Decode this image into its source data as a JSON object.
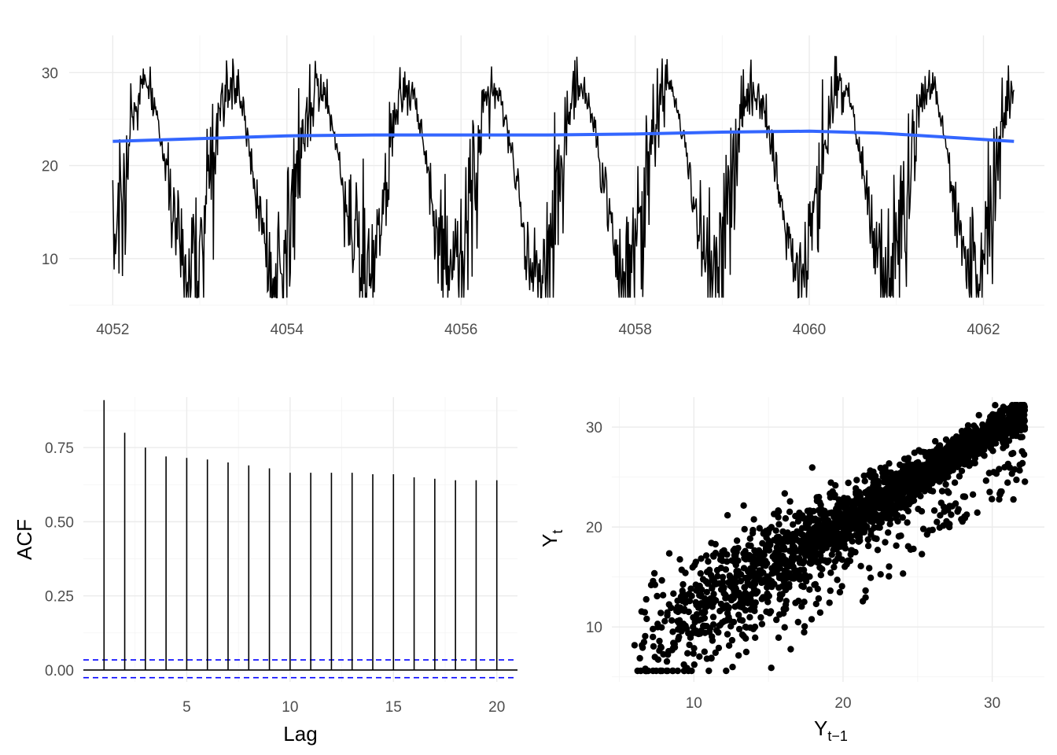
{
  "chart_data": [
    {
      "type": "line",
      "title": "",
      "xlabel": "",
      "ylabel": "",
      "xlim": [
        4051.5,
        4062.7
      ],
      "ylim": [
        5,
        34
      ],
      "x_ticks": [
        "4052",
        "4054",
        "4056",
        "4058",
        "4060",
        "4062"
      ],
      "y_ticks": [
        "10",
        "20",
        "30"
      ],
      "x_tick_values": [
        4052,
        4054,
        4056,
        4058,
        4060,
        4062
      ],
      "y_tick_values": [
        10,
        20,
        30
      ],
      "grid": true,
      "series": [
        {
          "role": "observed",
          "color": "#000000",
          "x_range": [
            4052.0,
            4062.35
          ],
          "cycles_per_unit": 1.0,
          "seasonal_peak_approx": 29,
          "seasonal_trough_approx": 9,
          "noise_sd_approx": 2.5
        },
        {
          "role": "smooth",
          "color": "#3366ff",
          "x": [
            4052.0,
            4053.0,
            4054.0,
            4055.0,
            4056.0,
            4057.0,
            4058.0,
            4059.0,
            4060.0,
            4060.8,
            4061.5,
            4062.35
          ],
          "y": [
            22.6,
            22.9,
            23.2,
            23.3,
            23.3,
            23.3,
            23.4,
            23.6,
            23.7,
            23.5,
            23.1,
            22.6
          ]
        }
      ]
    },
    {
      "type": "bar",
      "subtype": "acf",
      "title": "",
      "xlabel": "Lag",
      "ylabel": "ACF",
      "xlim": [
        0,
        21
      ],
      "ylim": [
        -0.04,
        0.92
      ],
      "x_ticks": [
        "5",
        "10",
        "15",
        "20"
      ],
      "x_tick_values": [
        5,
        10,
        15,
        20
      ],
      "y_ticks": [
        "0.00",
        "0.25",
        "0.50",
        "0.75"
      ],
      "y_tick_values": [
        0.0,
        0.25,
        0.5,
        0.75
      ],
      "categories": [
        1,
        2,
        3,
        4,
        5,
        6,
        7,
        8,
        9,
        10,
        11,
        12,
        13,
        14,
        15,
        16,
        17,
        18,
        19,
        20
      ],
      "values": [
        0.91,
        0.8,
        0.75,
        0.72,
        0.715,
        0.71,
        0.7,
        0.69,
        0.68,
        0.665,
        0.665,
        0.665,
        0.665,
        0.66,
        0.66,
        0.65,
        0.645,
        0.64,
        0.64,
        0.64
      ],
      "confidence_bounds": [
        0.034,
        -0.026
      ],
      "bar_color": "#000000",
      "bound_color": "#0000ff",
      "grid": true
    },
    {
      "type": "scatter",
      "title": "",
      "xlabel": "Y",
      "xlabel_subscript": "t−1",
      "ylabel": "Y",
      "ylabel_subscript": "t",
      "xlim": [
        4.5,
        33.5
      ],
      "ylim": [
        4.5,
        33.0
      ],
      "x_ticks": [
        "10",
        "20",
        "30"
      ],
      "x_tick_values": [
        10,
        20,
        30
      ],
      "y_ticks": [
        "10",
        "20",
        "30"
      ],
      "y_tick_values": [
        10,
        20,
        30
      ],
      "grid": true,
      "point_color": "#000000",
      "n_points": 2600,
      "slope_approx": 0.9,
      "intercept_approx": 2.4,
      "x_range": [
        5.8,
        32.2
      ]
    }
  ]
}
